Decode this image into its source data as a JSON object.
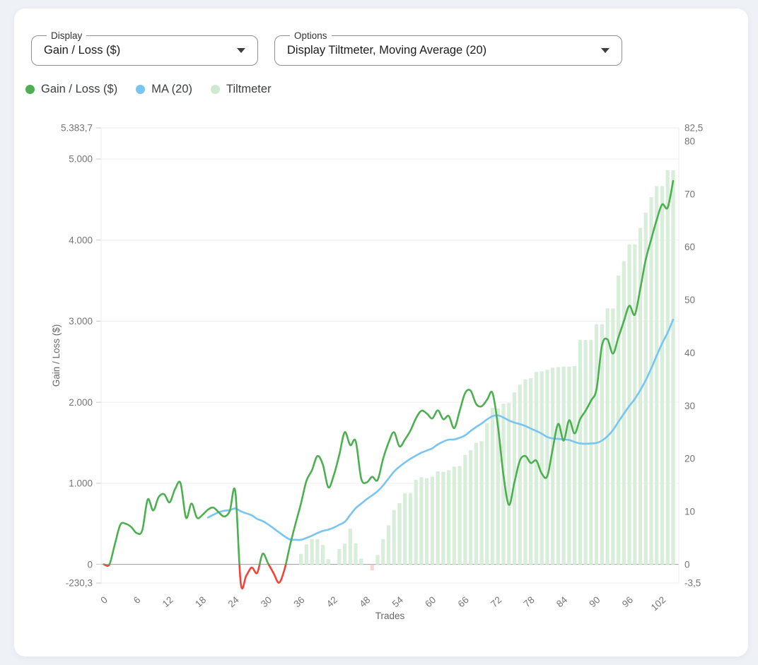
{
  "controls": {
    "display": {
      "label": "Display",
      "value": "Gain / Loss ($)"
    },
    "options": {
      "label": "Options",
      "value": "Display Tiltmeter, Moving Average (20)"
    }
  },
  "legend": [
    {
      "label": "Gain / Loss ($)",
      "color": "#4caf50"
    },
    {
      "label": "MA (20)",
      "color": "#78c5f2"
    },
    {
      "label": "Tiltmeter",
      "color": "#cfe9d1"
    }
  ],
  "chart_data": {
    "type": "line+bar",
    "xlabel": "Trades",
    "x_axis": {
      "title": "Trades",
      "ticks": [
        0,
        6,
        12,
        18,
        24,
        30,
        36,
        42,
        48,
        54,
        60,
        66,
        72,
        78,
        84,
        90,
        96,
        102
      ]
    },
    "left_axis": {
      "title": "Gain / Loss ($)",
      "range": [
        -230.3,
        5383.7
      ],
      "ticks": [
        {
          "v": 5383.7,
          "label": "5.383,7"
        },
        {
          "v": 5000,
          "label": "5.000"
        },
        {
          "v": 4000,
          "label": "4.000"
        },
        {
          "v": 3000,
          "label": "3.000"
        },
        {
          "v": 2000,
          "label": "2.000"
        },
        {
          "v": 1000,
          "label": "1.000"
        },
        {
          "v": 0,
          "label": "0"
        },
        {
          "v": -230.3,
          "label": "-230,3"
        }
      ]
    },
    "right_axis": {
      "range": [
        -3.5,
        82.5
      ],
      "ticks": [
        {
          "v": 82.5,
          "label": "82,5"
        },
        {
          "v": 80,
          "label": "80"
        },
        {
          "v": 70,
          "label": "70"
        },
        {
          "v": 60,
          "label": "60"
        },
        {
          "v": 50,
          "label": "50"
        },
        {
          "v": 40,
          "label": "40"
        },
        {
          "v": 30,
          "label": "30"
        },
        {
          "v": 20,
          "label": "20"
        },
        {
          "v": 10,
          "label": "10"
        },
        {
          "v": 0,
          "label": "0"
        },
        {
          "v": -3.5,
          "label": "-3,5"
        }
      ]
    },
    "grid": {
      "line": "#ededed",
      "zero_line": "#9b9b9b",
      "tick": "#c9c9c9",
      "label_color": "#757575",
      "title_color": "#666666"
    },
    "series": [
      {
        "name": "Gain / Loss ($)",
        "type": "line",
        "axis": "left",
        "color_positive": "#4caf50",
        "color_negative": "#f44336",
        "values": [
          0,
          0,
          250,
          490,
          500,
          460,
          385,
          420,
          800,
          665,
          830,
          865,
          765,
          930,
          1000,
          575,
          750,
          575,
          610,
          675,
          700,
          640,
          590,
          660,
          900,
          -235,
          -140,
          -40,
          -105,
          130,
          10,
          -110,
          -226,
          -60,
          235,
          500,
          750,
          1030,
          1160,
          1335,
          1230,
          950,
          1100,
          1350,
          1630,
          1470,
          1520,
          1060,
          1010,
          1080,
          1040,
          1300,
          1500,
          1630,
          1455,
          1540,
          1650,
          1800,
          1894,
          1860,
          1800,
          1900,
          1790,
          1830,
          1680,
          1894,
          2114,
          2143,
          1980,
          1950,
          2030,
          2114,
          1700,
          1100,
          734,
          1010,
          1280,
          1336,
          1250,
          1280,
          1120,
          1086,
          1424,
          1733,
          1527,
          1777,
          1615,
          1790,
          1894,
          2020,
          2160,
          2700,
          2775,
          2600,
          2800,
          3000,
          3190,
          3080,
          3400,
          3760,
          4010,
          4250,
          4440,
          4400,
          4730
        ]
      },
      {
        "name": "MA (20)",
        "type": "line",
        "axis": "left",
        "color": "#78c5f2",
        "derived": "moving_average",
        "window": 20,
        "source": "Gain / Loss ($)"
      },
      {
        "name": "Tiltmeter",
        "type": "bar",
        "axis": "right",
        "color_positive": "#d8edda",
        "color_negative": "#f7d6d1",
        "values": [
          null,
          null,
          null,
          null,
          null,
          null,
          null,
          null,
          null,
          null,
          null,
          null,
          null,
          null,
          null,
          null,
          null,
          null,
          null,
          null,
          null,
          null,
          null,
          null,
          null,
          null,
          null,
          null,
          null,
          null,
          null,
          null,
          null,
          null,
          null,
          null,
          2,
          3.8,
          4.8,
          4.8,
          3.7,
          1,
          null,
          2.9,
          3.9,
          6.8,
          4,
          1.1,
          null,
          -1.1,
          1.8,
          4.8,
          7.4,
          10.3,
          11.6,
          13.5,
          13.5,
          16,
          16.5,
          16.3,
          16.6,
          17.6,
          17.5,
          17.8,
          18.5,
          18.6,
          20.7,
          21.6,
          23,
          23.3,
          26.7,
          29.6,
          29.5,
          30.4,
          30.5,
          32.5,
          34,
          35,
          35.2,
          36.4,
          36.5,
          36.8,
          37.2,
          37.3,
          37.4,
          37.4,
          37.5,
          42.4,
          42.4,
          42.4,
          45.4,
          45.4,
          48.4,
          48.4,
          54.6,
          57.3,
          60.5,
          60.5,
          63.6,
          66.5,
          69.4,
          71.5,
          71.5,
          74.5,
          74.5
        ]
      }
    ]
  }
}
